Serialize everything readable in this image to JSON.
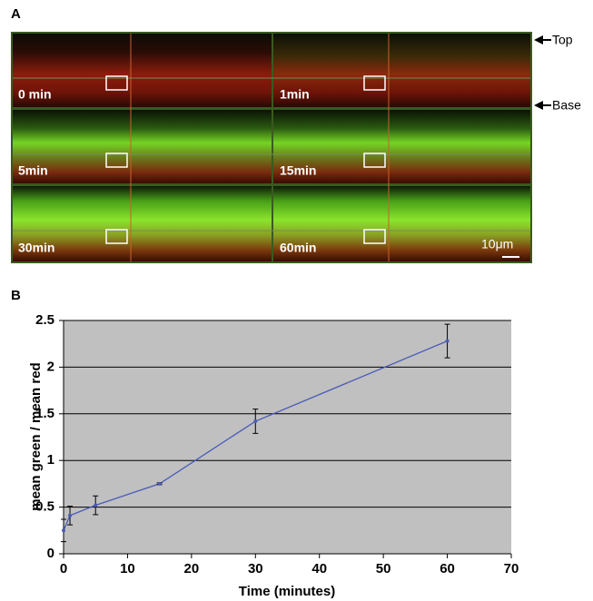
{
  "panel_a": {
    "label": "A",
    "frames": [
      "0 min",
      "1min",
      "5min",
      "15min",
      "30min",
      "60min"
    ],
    "arrows": [
      "Top",
      "Base"
    ],
    "scale_bar": "10μm"
  },
  "chart_data": {
    "type": "line",
    "panel_label": "B",
    "x_label": "Time (minutes)",
    "y_label": "mean green / mean red",
    "xlim": [
      0,
      70
    ],
    "xticks": [
      0,
      10,
      20,
      30,
      40,
      50,
      60,
      70
    ],
    "ylim": [
      0,
      2.5
    ],
    "yticks": [
      0,
      0.5,
      1,
      1.5,
      2,
      2.5
    ],
    "grid": true,
    "series": [
      {
        "color": "#4a5ab8",
        "x": [
          0,
          1,
          5,
          15,
          30,
          60
        ],
        "values": [
          0.25,
          0.41,
          0.52,
          0.75,
          1.42,
          2.28
        ],
        "errors": [
          0.12,
          0.1,
          0.1,
          0.01,
          0.13,
          0.18
        ]
      }
    ]
  }
}
